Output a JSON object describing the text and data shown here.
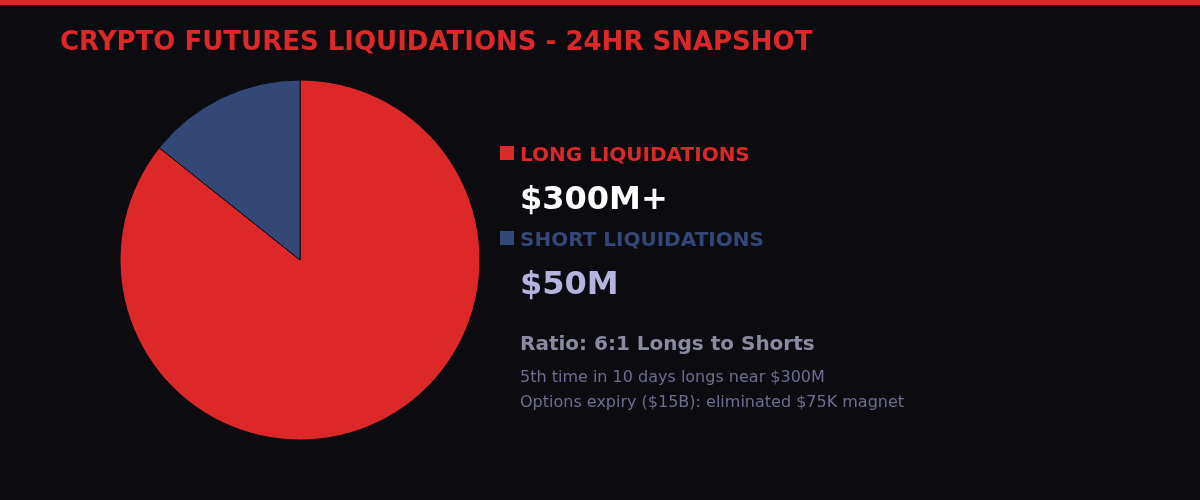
{
  "chart_data": {
    "type": "pie",
    "title": "CRYPTO FUTURES LIQUIDATIONS - 24HR SNAPSHOT",
    "categories": [
      "LONG LIQUIDATIONS",
      "SHORT LIQUIDATIONS"
    ],
    "values": [
      300,
      50
    ],
    "value_labels": [
      "$300M+",
      "$50M"
    ],
    "colors": [
      "#dc2828",
      "#334877"
    ],
    "legend": "right",
    "annotations": [
      "Ratio: 6:1 Longs to Shorts",
      "5th time in 10 days longs near $300M",
      "Options expiry ($15B): eliminated $75K magnet"
    ]
  }
}
